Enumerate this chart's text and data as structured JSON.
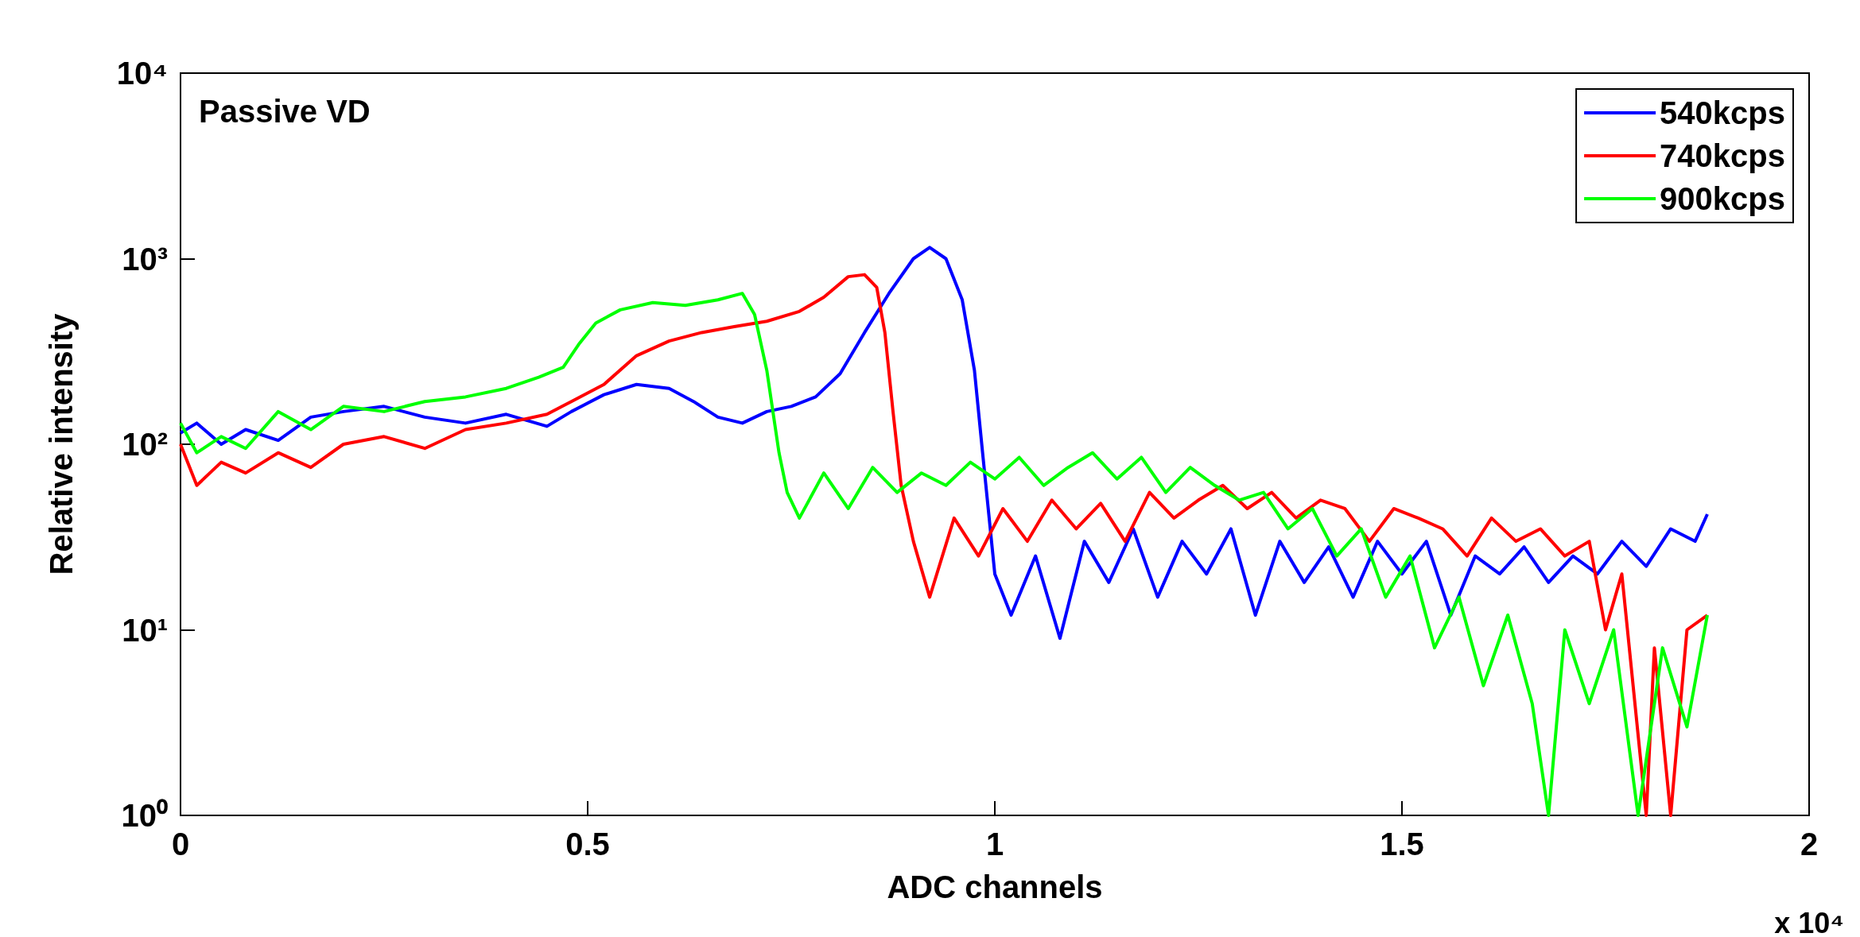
{
  "chart_data": {
    "type": "line",
    "xlabel": "ADC channels",
    "ylabel": "Relative intensity",
    "annotations": [
      "Passive VD",
      "x 10⁴"
    ],
    "xlim": [
      0,
      2
    ],
    "xticks": [
      0,
      0.5,
      1,
      1.5,
      2
    ],
    "ylim": [
      1,
      10000
    ],
    "yticks": [
      {
        "value": 1,
        "label": "10⁰"
      },
      {
        "value": 10,
        "label": "10¹"
      },
      {
        "value": 100,
        "label": "10²"
      },
      {
        "value": 1000,
        "label": "10³"
      },
      {
        "value": 10000,
        "label": "10⁴"
      }
    ],
    "log": "y",
    "grid": false,
    "legend": "top right",
    "marker": "none",
    "line_style": "solid",
    "series": [
      {
        "name": "540kcps",
        "color": "#0000ff",
        "x": [
          0,
          0.02,
          0.05,
          0.08,
          0.12,
          0.16,
          0.2,
          0.25,
          0.3,
          0.35,
          0.4,
          0.45,
          0.48,
          0.52,
          0.56,
          0.6,
          0.63,
          0.66,
          0.69,
          0.72,
          0.75,
          0.78,
          0.81,
          0.84,
          0.87,
          0.9,
          0.92,
          0.94,
          0.96,
          0.975,
          0.985,
          1,
          1.02,
          1.05,
          1.08,
          1.11,
          1.14,
          1.17,
          1.2,
          1.23,
          1.26,
          1.29,
          1.32,
          1.35,
          1.38,
          1.41,
          1.44,
          1.47,
          1.5,
          1.53,
          1.56,
          1.59,
          1.62,
          1.65,
          1.68,
          1.71,
          1.74,
          1.77,
          1.8,
          1.83,
          1.86,
          1.875
        ],
        "values": [
          115,
          130,
          100,
          120,
          105,
          140,
          150,
          160,
          140,
          130,
          145,
          125,
          150,
          185,
          210,
          200,
          170,
          140,
          130,
          150,
          160,
          180,
          240,
          400,
          650,
          1000,
          1150,
          1000,
          600,
          250,
          90,
          20,
          12,
          25,
          9,
          30,
          18,
          35,
          15,
          30,
          20,
          35,
          12,
          30,
          18,
          28,
          15,
          30,
          20,
          30,
          12,
          25,
          20,
          28,
          18,
          25,
          20,
          30,
          22,
          35,
          30,
          42
        ]
      },
      {
        "name": "740kcps",
        "color": "#ff0000",
        "x": [
          0,
          0.02,
          0.05,
          0.08,
          0.12,
          0.16,
          0.2,
          0.25,
          0.3,
          0.35,
          0.4,
          0.45,
          0.48,
          0.52,
          0.56,
          0.6,
          0.64,
          0.68,
          0.72,
          0.76,
          0.79,
          0.82,
          0.84,
          0.855,
          0.865,
          0.875,
          0.885,
          0.9,
          0.92,
          0.95,
          0.98,
          1.01,
          1.04,
          1.07,
          1.1,
          1.13,
          1.16,
          1.19,
          1.22,
          1.25,
          1.28,
          1.31,
          1.34,
          1.37,
          1.4,
          1.43,
          1.46,
          1.49,
          1.52,
          1.55,
          1.58,
          1.61,
          1.64,
          1.67,
          1.7,
          1.73,
          1.75,
          1.77,
          1.8,
          1.81,
          1.83,
          1.85,
          1.875
        ],
        "values": [
          100,
          60,
          80,
          70,
          90,
          75,
          100,
          110,
          95,
          120,
          130,
          145,
          170,
          210,
          300,
          360,
          400,
          430,
          460,
          520,
          620,
          800,
          820,
          700,
          400,
          150,
          60,
          30,
          15,
          40,
          25,
          45,
          30,
          50,
          35,
          48,
          30,
          55,
          40,
          50,
          60,
          45,
          55,
          40,
          50,
          45,
          30,
          45,
          40,
          35,
          25,
          40,
          30,
          35,
          25,
          30,
          10,
          20,
          1,
          8,
          1,
          10,
          12
        ]
      },
      {
        "name": "900kcps",
        "color": "#00ff00",
        "x": [
          0,
          0.02,
          0.05,
          0.08,
          0.12,
          0.16,
          0.2,
          0.25,
          0.3,
          0.35,
          0.4,
          0.44,
          0.47,
          0.49,
          0.51,
          0.54,
          0.58,
          0.62,
          0.66,
          0.69,
          0.705,
          0.72,
          0.735,
          0.745,
          0.76,
          0.79,
          0.82,
          0.85,
          0.88,
          0.91,
          0.94,
          0.97,
          1,
          1.03,
          1.06,
          1.09,
          1.12,
          1.15,
          1.18,
          1.21,
          1.24,
          1.27,
          1.3,
          1.33,
          1.36,
          1.39,
          1.42,
          1.45,
          1.48,
          1.51,
          1.54,
          1.57,
          1.6,
          1.63,
          1.66,
          1.68,
          1.7,
          1.73,
          1.76,
          1.79,
          1.82,
          1.85,
          1.875
        ],
        "values": [
          130,
          90,
          110,
          95,
          150,
          120,
          160,
          150,
          170,
          180,
          200,
          230,
          260,
          350,
          450,
          530,
          580,
          560,
          600,
          650,
          500,
          250,
          90,
          55,
          40,
          70,
          45,
          75,
          55,
          70,
          60,
          80,
          65,
          85,
          60,
          75,
          90,
          65,
          85,
          55,
          75,
          60,
          50,
          55,
          35,
          45,
          25,
          35,
          15,
          25,
          8,
          15,
          5,
          12,
          4,
          1,
          10,
          4,
          10,
          1,
          8,
          3,
          12
        ]
      }
    ]
  }
}
